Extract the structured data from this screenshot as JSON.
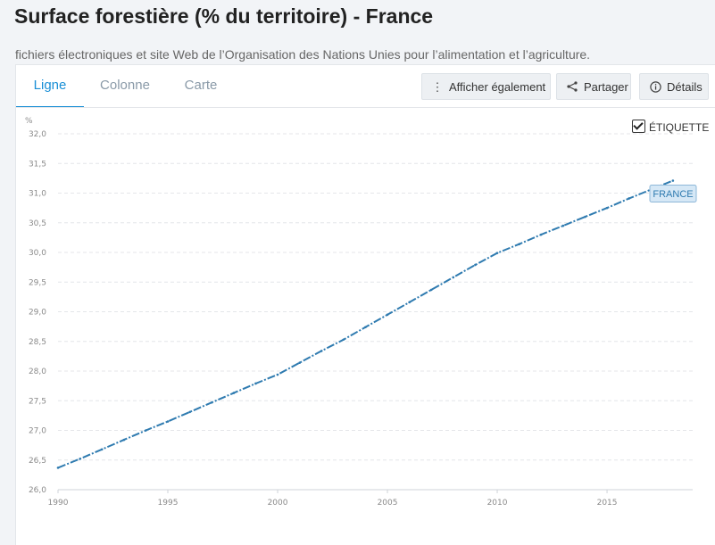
{
  "header": {
    "title": "Surface forestière (% du territoire) - France",
    "subtitle": "fichiers électroniques et site Web de l’Organisation des Nations Unies pour l’alimentation et l’agriculture."
  },
  "tabs": [
    {
      "label": "Ligne",
      "active": true
    },
    {
      "label": "Colonne",
      "active": false
    },
    {
      "label": "Carte",
      "active": false
    }
  ],
  "toolbar": {
    "show_also": "Afficher également",
    "share": "Partager",
    "details": "Détails"
  },
  "label_toggle": {
    "label": "ÉTIQUETTE",
    "checked": true
  },
  "colors": {
    "accent": "#1a8fd6",
    "line": "#2f7bb0",
    "tag_bg": "#d6e8f6",
    "tag_border": "#8db7d8"
  },
  "chart_data": {
    "type": "line",
    "ylabel": "%",
    "ylim": [
      26.0,
      32.0
    ],
    "yticks": [
      "26,0",
      "26,5",
      "27,0",
      "27,5",
      "28,0",
      "28,5",
      "29,0",
      "29,5",
      "30,0",
      "30,5",
      "31,0",
      "31,5",
      "32,0"
    ],
    "xticks": [
      "1990",
      "1995",
      "2000",
      "2005",
      "2010",
      "2015"
    ],
    "x": [
      1990,
      1991,
      1992,
      1993,
      1994,
      1995,
      1996,
      1997,
      1998,
      1999,
      2000,
      2001,
      2002,
      2003,
      2004,
      2005,
      2006,
      2007,
      2008,
      2009,
      2010,
      2011,
      2012,
      2013,
      2014,
      2015,
      2016,
      2017,
      2018
    ],
    "series": [
      {
        "name": "FRANCE",
        "values": [
          26.37,
          26.52,
          26.68,
          26.84,
          27.0,
          27.15,
          27.31,
          27.47,
          27.63,
          27.79,
          27.94,
          28.14,
          28.34,
          28.53,
          28.74,
          28.95,
          29.16,
          29.37,
          29.58,
          29.79,
          29.99,
          30.14,
          30.3,
          30.45,
          30.6,
          30.75,
          30.91,
          31.06,
          31.21
        ]
      }
    ],
    "grid": true
  }
}
